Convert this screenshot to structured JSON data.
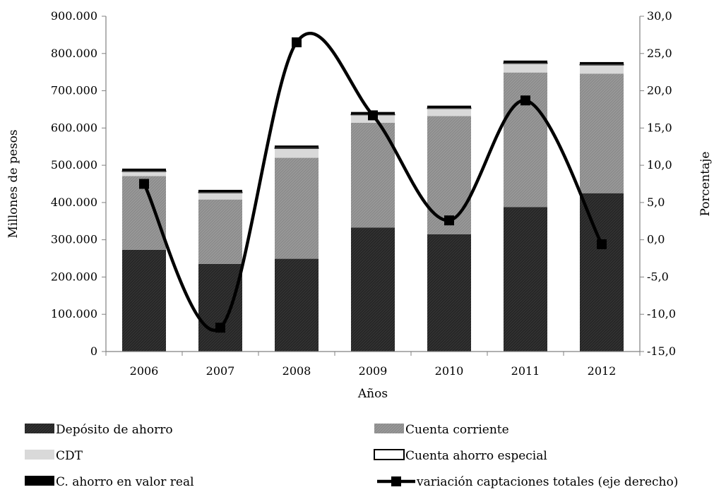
{
  "chart_data": {
    "type": "bar",
    "categories": [
      "2006",
      "2007",
      "2008",
      "2009",
      "2010",
      "2011",
      "2012"
    ],
    "xlabel": "Años",
    "ylabel": "Millones de pesos",
    "y2label": "Porcentaje",
    "ylim": [
      0,
      900000
    ],
    "y2lim": [
      -15,
      30
    ],
    "y_ticks": [
      "0",
      "100.000",
      "200.000",
      "300.000",
      "400.000",
      "500.000",
      "600.000",
      "700.000",
      "800.000",
      "900.000"
    ],
    "y2_ticks": [
      "-15,0",
      "-10,0",
      "-5,0",
      "0,0",
      "5,0",
      "10,0",
      "15,0",
      "20,0",
      "25,0",
      "30,0"
    ],
    "grid": false,
    "legend_position": "bottom",
    "stacked_series": [
      {
        "name": "Depósito de ahorro",
        "color": "#262626",
        "values": [
          273000,
          235000,
          249000,
          333000,
          315000,
          388000,
          425000
        ]
      },
      {
        "name": "Cuenta corriente",
        "color": "#8c8c8c",
        "values": [
          198000,
          173000,
          271000,
          281000,
          317000,
          361000,
          321000
        ]
      },
      {
        "name": "CDT",
        "color": "#d9d9d9",
        "values": [
          12000,
          18000,
          25000,
          21000,
          20000,
          24000,
          23000
        ]
      },
      {
        "name": "Cuenta ahorro especial",
        "color": "#ffffff",
        "values": [
          2000,
          2000,
          2000,
          2000,
          2000,
          2000,
          2000
        ]
      },
      {
        "name": "C. ahorro en valor real",
        "color": "#000000",
        "values": [
          6000,
          6000,
          6000,
          6000,
          6000,
          6000,
          6000
        ]
      }
    ],
    "line_series": {
      "name": "variación captaciones totales (eje derecho)",
      "axis": "right",
      "color": "#000000",
      "values": [
        7.5,
        -11.8,
        26.5,
        16.7,
        2.6,
        18.7,
        -0.6
      ]
    }
  }
}
